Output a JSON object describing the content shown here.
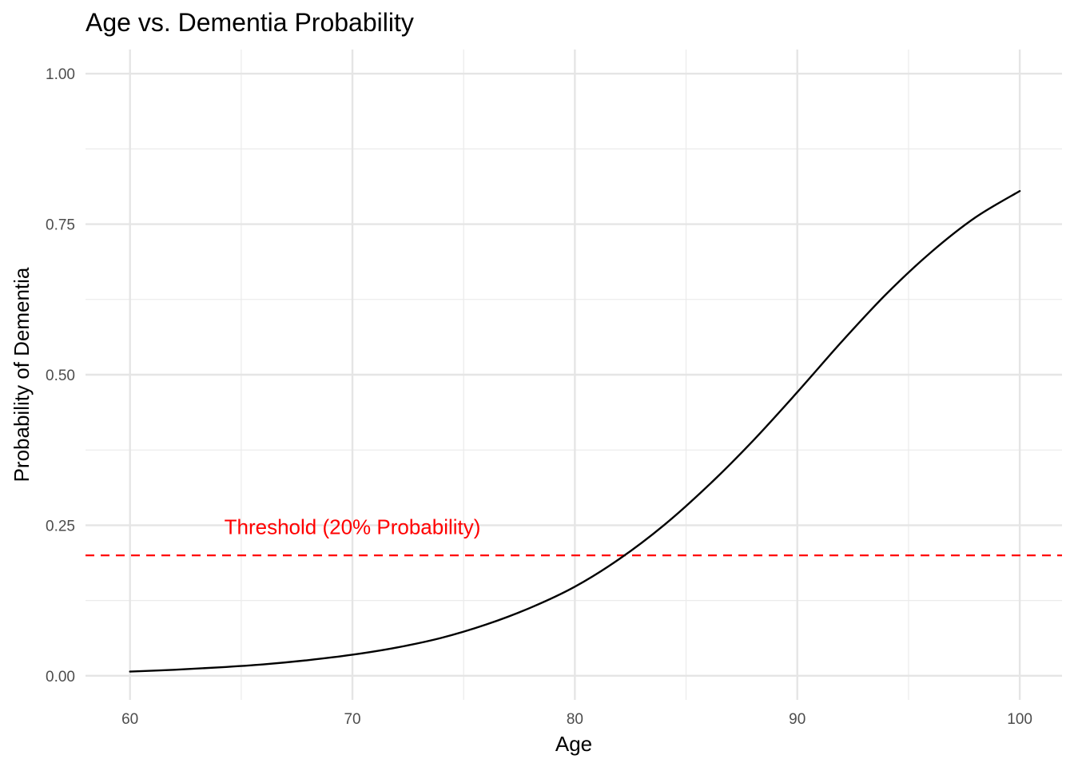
{
  "chart_data": {
    "type": "line",
    "title": "Age vs. Dementia Probability",
    "xlabel": "Age",
    "ylabel": "Probability of Dementia",
    "xlim": [
      58,
      101.9
    ],
    "ylim": [
      -0.04,
      1.04
    ],
    "xticks": [
      60,
      70,
      80,
      90,
      100
    ],
    "xtick_labels": [
      "60",
      "70",
      "80",
      "90",
      "100"
    ],
    "yticks": [
      0,
      0.25,
      0.5,
      0.75,
      1.0
    ],
    "ytick_labels": [
      "0.00",
      "0.25",
      "0.50",
      "0.75",
      "1.00"
    ],
    "grid": true,
    "series": [
      {
        "color": "#000000",
        "x": [
          60,
          62,
          64,
          66,
          68,
          70,
          72,
          74,
          76,
          78,
          80,
          82,
          84,
          86,
          88,
          90,
          92,
          94,
          96,
          98,
          100
        ],
        "y": [
          0.007,
          0.01,
          0.014,
          0.019,
          0.026,
          0.035,
          0.047,
          0.063,
          0.085,
          0.113,
          0.148,
          0.194,
          0.25,
          0.316,
          0.39,
          0.471,
          0.555,
          0.634,
          0.703,
          0.761,
          0.805
        ]
      }
    ],
    "threshold": {
      "y": 0.2,
      "color": "#ff0000",
      "style": "dashed",
      "label": "Threshold (20% Probability)",
      "label_x": 70,
      "label_y": 0.247
    }
  }
}
